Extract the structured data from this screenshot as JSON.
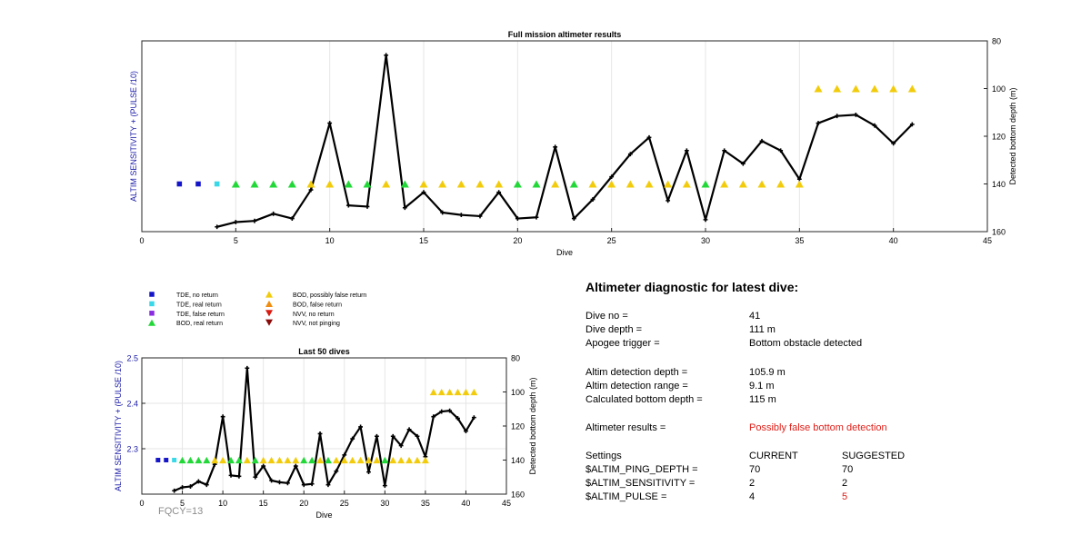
{
  "chart_data": [
    {
      "type": "line",
      "title": "Full mission altimeter results",
      "xlabel": "Dive",
      "ylabel_left": "ALTIM SENSITIVITY + (PULSE /10)",
      "ylabel_right": "Detected bottom depth (m)",
      "xlim": [
        0,
        45
      ],
      "x_ticks": [
        0,
        5,
        10,
        15,
        20,
        25,
        30,
        35,
        40,
        45
      ],
      "y_right_lim": [
        80,
        160
      ],
      "y_right_reversed": true,
      "y_right_ticks": [
        80,
        100,
        120,
        140,
        160
      ],
      "grid": "vertical",
      "series": [
        {
          "name": "Detected bottom depth",
          "axis": "right",
          "color": "#000000",
          "x": [
            4,
            5,
            6,
            7,
            8,
            9,
            10,
            11,
            12,
            13,
            14,
            15,
            16,
            17,
            18,
            19,
            20,
            21,
            22,
            23,
            24,
            25,
            26,
            27,
            28,
            29,
            30,
            31,
            32,
            33,
            34,
            35,
            36,
            37,
            38,
            39,
            40,
            41
          ],
          "y": [
            158,
            156,
            155.5,
            152.5,
            154.5,
            142.5,
            114.5,
            149,
            149.5,
            86,
            150,
            143.5,
            152,
            153,
            153.5,
            143.5,
            154.5,
            154,
            124.5,
            154.5,
            146.5,
            137,
            127.5,
            120.5,
            147,
            126,
            155,
            126,
            131.5,
            122,
            126,
            138,
            114.5,
            111.5,
            111,
            115.5,
            123,
            115
          ]
        }
      ],
      "markers": [
        {
          "name": "TDE, no return",
          "shape": "square",
          "color": "#1414c8",
          "dives": [
            2,
            3
          ]
        },
        {
          "name": "TDE, real return",
          "shape": "square",
          "color": "#38d8e8",
          "dives": [
            4
          ]
        },
        {
          "name": "BOD, real return",
          "shape": "triangle-up",
          "color": "#22d838",
          "dives": [
            5,
            6,
            7,
            8,
            11,
            12,
            14,
            20,
            21,
            23,
            30
          ]
        },
        {
          "name": "BOD, possibly false return",
          "shape": "triangle-up",
          "color": "#f2cc0c",
          "dives": [
            9,
            10,
            13,
            15,
            16,
            17,
            18,
            19,
            22,
            24,
            25,
            26,
            27,
            28,
            29,
            31,
            32,
            33,
            34,
            35
          ]
        }
      ],
      "marker_level_right": 140,
      "marker_level_high_right": 100,
      "high_marker_dives": [
        36,
        37,
        38,
        39,
        40,
        41
      ]
    },
    {
      "type": "line",
      "title": "Last 50 dives",
      "xlabel": "Dive",
      "ylabel_left": "ALTIM SENSITIVITY + (PULSE /10)",
      "ylabel_right": "Detected bottom depth (m)",
      "xlim": [
        0,
        45
      ],
      "x_ticks": [
        0,
        5,
        10,
        15,
        20,
        25,
        30,
        35,
        40,
        45
      ],
      "y_left_lim": [
        2.2,
        2.5
      ],
      "y_left_ticks": [
        2.3,
        2.4,
        2.5
      ],
      "y_right_lim": [
        80,
        160
      ],
      "y_right_reversed": true,
      "y_right_ticks": [
        80,
        100,
        120,
        140,
        160
      ],
      "grid": "both"
    }
  ],
  "legend": {
    "left": [
      {
        "label": "TDE, no return",
        "shape": "square",
        "color": "#1414c8"
      },
      {
        "label": "TDE, real return",
        "shape": "square",
        "color": "#38d8e8"
      },
      {
        "label": "TDE, false return",
        "shape": "square",
        "color": "#8a2be2"
      },
      {
        "label": "BOD, real return",
        "shape": "triangle-up",
        "color": "#22d838"
      }
    ],
    "right": [
      {
        "label": "BOD, possibly false return",
        "shape": "triangle-up",
        "color": "#f2cc0c"
      },
      {
        "label": "BOD, false return",
        "shape": "triangle-up",
        "color": "#f08c10"
      },
      {
        "label": "NVV, no return",
        "shape": "triangle-down",
        "color": "#d81a10"
      },
      {
        "label": "NVV, not pinging",
        "shape": "triangle-down",
        "color": "#8b0a0a"
      }
    ]
  },
  "fqcy": "FQCY=13",
  "diagnostic": {
    "title": "Altimeter diagnostic for latest dive:",
    "dive_no_label": "Dive no =",
    "dive_no": "41",
    "dive_depth_label": "Dive depth =",
    "dive_depth": "111 m",
    "apogee_label": "Apogee trigger =",
    "apogee": "Bottom obstacle detected",
    "altim_depth_label": "Altim detection depth =",
    "altim_depth": "105.9 m",
    "altim_range_label": "Altim detection range =",
    "altim_range": "9.1 m",
    "calc_depth_label": "Calculated bottom depth =",
    "calc_depth": "115 m",
    "results_label": "Altimeter results =",
    "results": "Possibly false bottom detection",
    "settings_label": "Settings",
    "current_label": "CURRENT",
    "suggested_label": "SUGGESTED",
    "settings": [
      {
        "name": "$ALTIM_PING_DEPTH =",
        "current": "70",
        "suggested": "70",
        "changed": false
      },
      {
        "name": "$ALTIM_SENSITIVITY =",
        "current": "2",
        "suggested": "2",
        "changed": false
      },
      {
        "name": "$ALTIM_PULSE =",
        "current": "4",
        "suggested": "5",
        "changed": true
      }
    ]
  },
  "colors": {
    "line": "#000000",
    "left_axis_label": "#1a1aa8",
    "grid": "#e6e6e6",
    "alert": "#e0201a"
  }
}
